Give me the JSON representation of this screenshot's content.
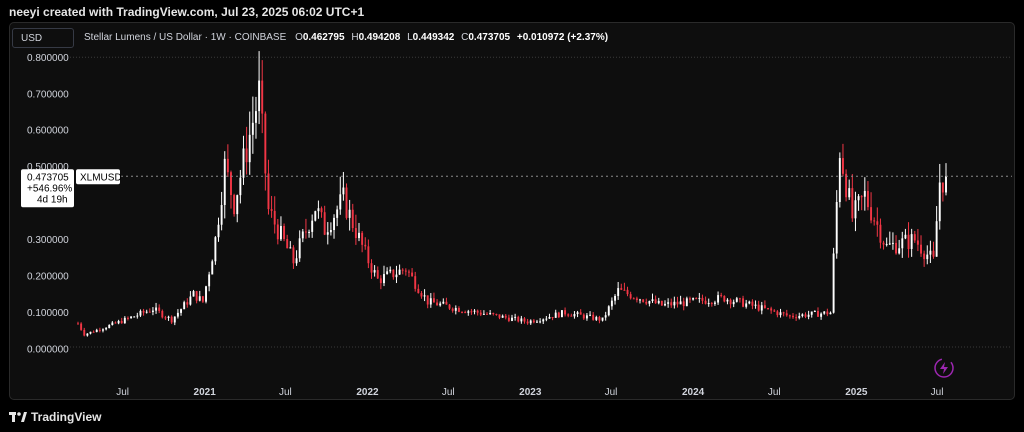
{
  "caption": "neeyi created with TradingView.com, Jul 23, 2025 06:02 UTC+1",
  "currency_button": "USD",
  "legend": {
    "symbol": "Stellar Lumens / US Dollar · 1W · COINBASE",
    "o_label": "O",
    "o_value": "0.462795",
    "h_label": "H",
    "h_value": "0.494208",
    "l_label": "L",
    "l_value": "0.449342",
    "c_label": "C",
    "c_value": "0.473705",
    "change": "+0.010972 (+2.37%)"
  },
  "price_tag": {
    "price": "0.473705",
    "change_pct": "+546.96%",
    "countdown": "4d 19h",
    "ticker": "XLMUSD"
  },
  "footer_brand": "TradingView",
  "colors": {
    "up": "#ffffff",
    "down": "#f23645",
    "background": "#0e0e0e",
    "text": "#d1d4dc",
    "accent": "#9c27b0"
  },
  "chart_data": {
    "type": "candlestick",
    "interval": "1W",
    "ylim": [
      -0.03,
      0.82
    ],
    "yticks": [
      "0.000000",
      "0.100000",
      "0.200000",
      "0.300000",
      "0.500000",
      "0.600000",
      "0.700000",
      "0.800000"
    ],
    "xticks": [
      "Jul",
      "2021",
      "Jul",
      "2022",
      "Jul",
      "2023",
      "Jul",
      "2024",
      "Jul",
      "2025",
      "Jul"
    ],
    "last_close": 0.473705,
    "anchors": [
      {
        "date": "2020-03-23",
        "price": 0.07
      },
      {
        "date": "2020-04-06",
        "price": 0.04
      },
      {
        "date": "2020-06-15",
        "price": 0.07
      },
      {
        "date": "2020-09-07",
        "price": 0.11
      },
      {
        "date": "2020-10-19",
        "price": 0.08
      },
      {
        "date": "2020-12-07",
        "price": 0.15
      },
      {
        "date": "2020-12-28",
        "price": 0.13
      },
      {
        "date": "2021-01-25",
        "price": 0.3
      },
      {
        "date": "2021-02-15",
        "price": 0.5
      },
      {
        "date": "2021-03-08",
        "price": 0.4
      },
      {
        "date": "2021-04-05",
        "price": 0.55
      },
      {
        "date": "2021-05-03",
        "price": 0.7
      },
      {
        "date": "2021-05-24",
        "price": 0.38
      },
      {
        "date": "2021-07-19",
        "price": 0.24
      },
      {
        "date": "2021-09-06",
        "price": 0.39
      },
      {
        "date": "2021-09-27",
        "price": 0.33
      },
      {
        "date": "2021-11-08",
        "price": 0.41
      },
      {
        "date": "2021-12-27",
        "price": 0.26
      },
      {
        "date": "2022-01-24",
        "price": 0.19
      },
      {
        "date": "2022-03-28",
        "price": 0.22
      },
      {
        "date": "2022-05-16",
        "price": 0.13
      },
      {
        "date": "2022-07-25",
        "price": 0.11
      },
      {
        "date": "2022-12-26",
        "price": 0.075
      },
      {
        "date": "2023-03-20",
        "price": 0.1
      },
      {
        "date": "2023-06-12",
        "price": 0.08
      },
      {
        "date": "2023-07-17",
        "price": 0.16
      },
      {
        "date": "2023-10-23",
        "price": 0.12
      },
      {
        "date": "2024-03-11",
        "price": 0.14
      },
      {
        "date": "2024-08-05",
        "price": 0.09
      },
      {
        "date": "2024-11-04",
        "price": 0.1
      },
      {
        "date": "2024-11-18",
        "price": 0.4
      },
      {
        "date": "2024-11-25",
        "price": 0.55
      },
      {
        "date": "2024-12-23",
        "price": 0.36
      },
      {
        "date": "2025-01-20",
        "price": 0.42
      },
      {
        "date": "2025-03-10",
        "price": 0.28
      },
      {
        "date": "2025-05-12",
        "price": 0.3
      },
      {
        "date": "2025-06-23",
        "price": 0.24
      },
      {
        "date": "2025-07-07",
        "price": 0.46
      },
      {
        "date": "2025-07-21",
        "price": 0.47
      }
    ]
  }
}
